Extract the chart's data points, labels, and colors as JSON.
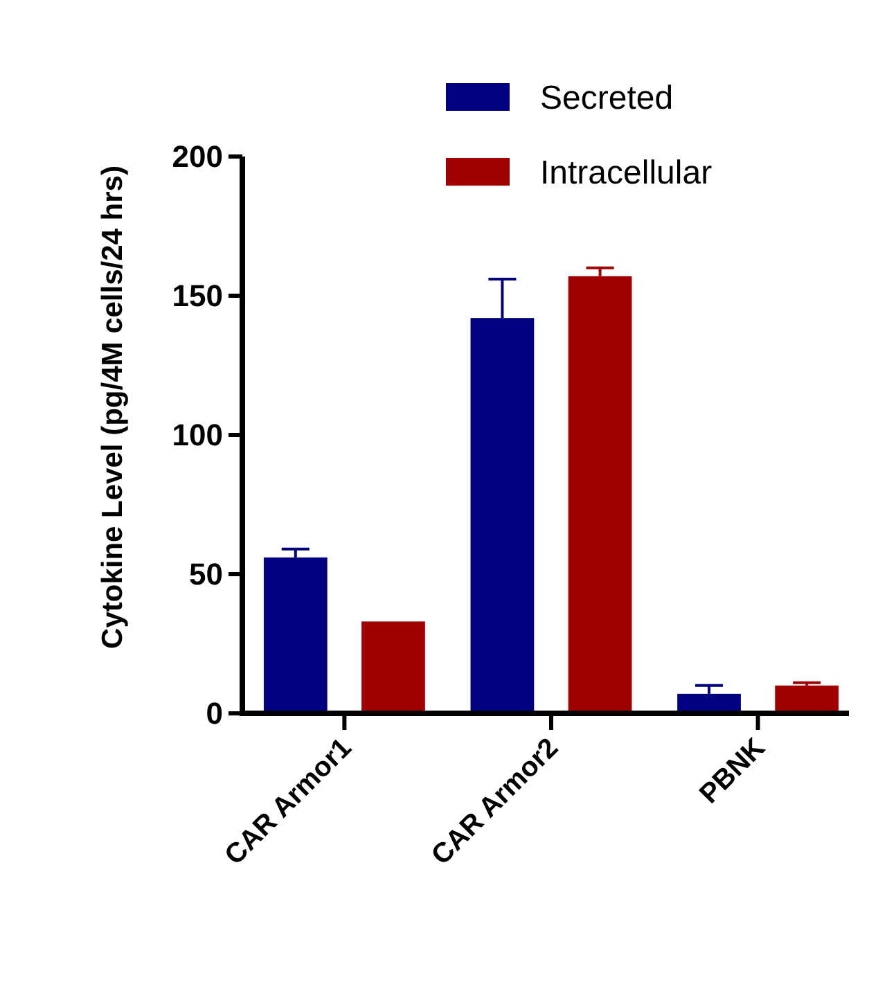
{
  "chart_data": {
    "type": "bar",
    "ylabel": "Cytokine Level (pg/4M cells/24 hrs)",
    "categories": [
      "CAR Armor1",
      "CAR Armor2",
      "PBNK"
    ],
    "series": [
      {
        "name": "Secreted",
        "color": "#000080",
        "values": [
          56,
          142,
          7
        ],
        "errors": [
          [
            56,
            59
          ],
          [
            142,
            156
          ],
          [
            7,
            10
          ]
        ]
      },
      {
        "name": "Intracellular",
        "color": "#a00000",
        "values": [
          33,
          157,
          10
        ],
        "errors": [
          null,
          [
            157,
            160
          ],
          [
            10,
            11
          ]
        ]
      }
    ],
    "ylim": [
      0,
      200
    ],
    "yticks": [
      0,
      50,
      100,
      150,
      200
    ],
    "grid": false,
    "legend": "top right"
  }
}
